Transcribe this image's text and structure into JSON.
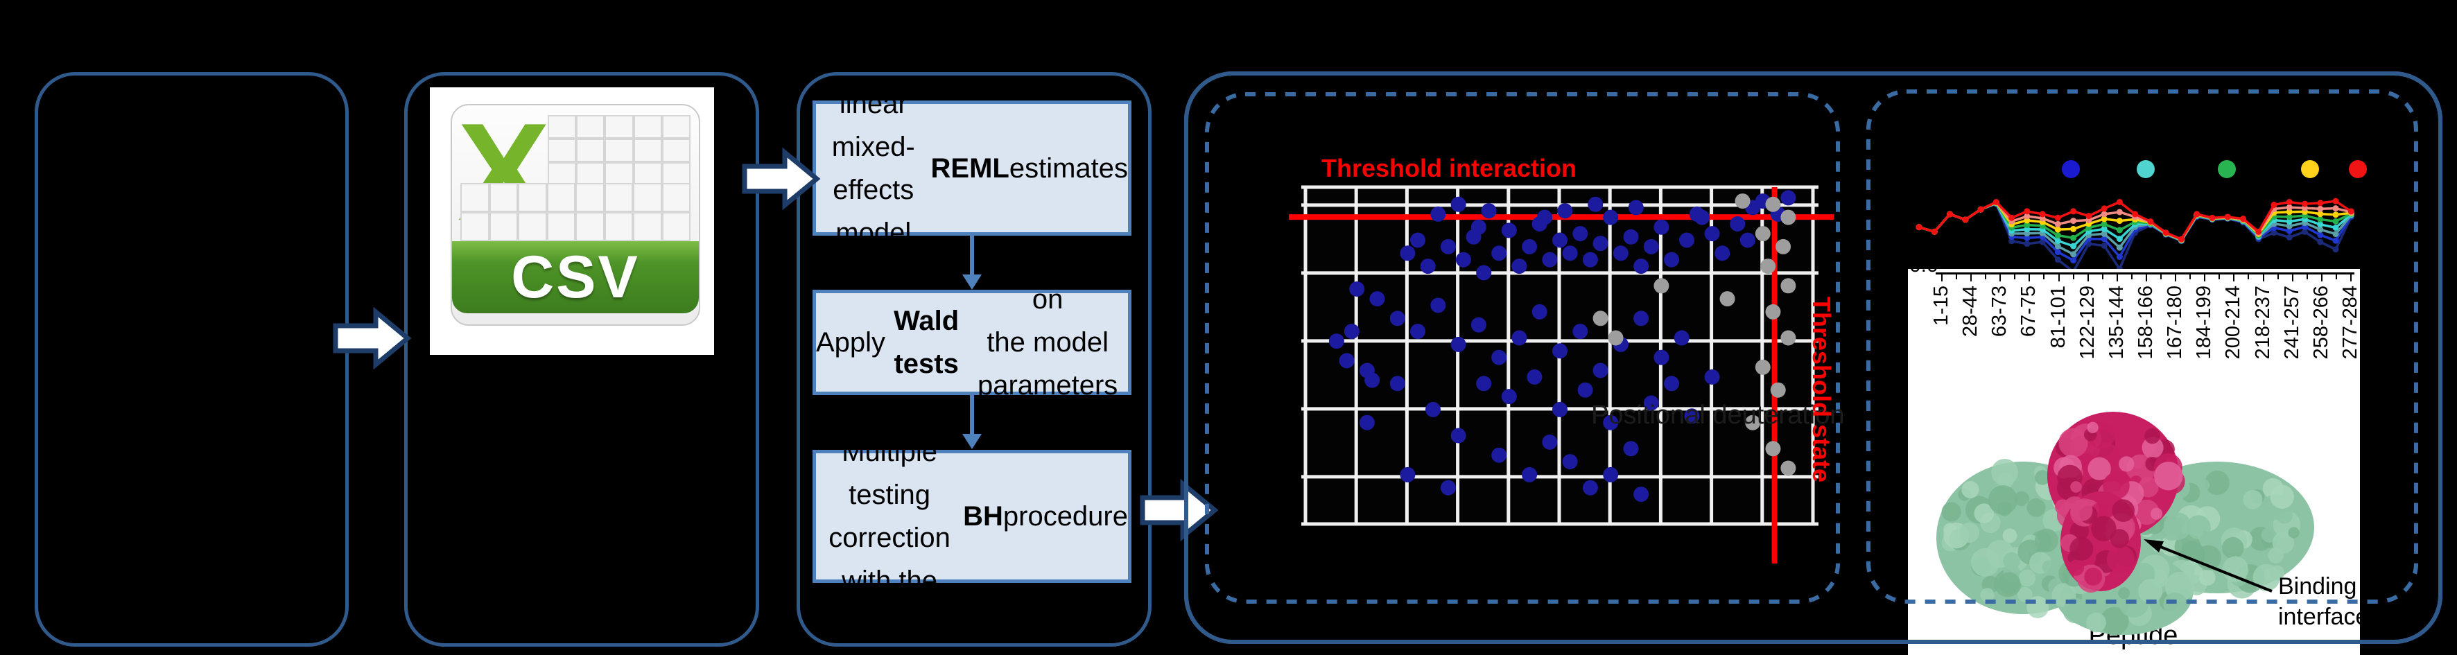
{
  "pipeline": {
    "csv_icon_label": "CSV",
    "steps": [
      {
        "pre": "Fit a linear mixed-\neffects model with\n",
        "bold": "REML",
        "post": " estimates"
      },
      {
        "pre": "Apply ",
        "bold": "Wald tests",
        "post": " on\nthe model parameters"
      },
      {
        "pre": "Multiple testing\ncorrection\nwith the ",
        "bold": "BH",
        "post": " procedure"
      }
    ]
  },
  "colors": {
    "box_border": "#315a8c",
    "step_fill": "#dbe5f1",
    "step_border": "#4f81bd",
    "dashed_border": "#3a6ba3",
    "threshold_red": "#ff0000",
    "scatter_blue": "#1c1a9e",
    "scatter_gray": "#9e9e9e",
    "protein_green": "#8cc3a4",
    "protein_magenta": "#c81e62"
  },
  "scatter_panel": {
    "title": "Threshold interaction",
    "vertical_label": "Threshold state",
    "faint_label": "Positional deuteration"
  },
  "profile_panel": {
    "ytick": "0.0",
    "xlabel": "Peptide",
    "xticklabels": [
      "1-15",
      "28-44",
      "63-73",
      "67-75",
      "81-101",
      "122-129",
      "135-144",
      "158-166",
      "167-180",
      "184-199",
      "200-214",
      "218-237",
      "241-257",
      "258-266",
      "277-284"
    ],
    "binding_label": "Binding\ninterface"
  },
  "chart_data": [
    {
      "type": "scatter",
      "title": "Threshold interaction",
      "note": "axes unlabeled; coordinates are percent of plot area (x right, y down)",
      "thresholds": {
        "horizontal_y_pct": 9.2,
        "vertical_x_pct": 91.5,
        "horizontal_label": "Threshold interaction",
        "vertical_label": "Threshold state"
      },
      "grid": {
        "v_lines": 11,
        "h_lines_y_pct": [
          0.4,
          5.7,
          25.7,
          45.7,
          65.7,
          85.7,
          99.6
        ]
      },
      "series": [
        {
          "name": "significant-peptides-blue",
          "color": "#1c1a9e",
          "points": [
            [
              26,
              7
            ],
            [
              30,
              4
            ],
            [
              34,
              11
            ],
            [
              36,
              6
            ],
            [
              47,
              8
            ],
            [
              51,
              6
            ],
            [
              57,
              4
            ],
            [
              60,
              8
            ],
            [
              65,
              5
            ],
            [
              77,
              7
            ],
            [
              88,
              5
            ],
            [
              90,
              3
            ],
            [
              93,
              7
            ],
            [
              95,
              2
            ],
            [
              6,
              46
            ],
            [
              8,
              52
            ],
            [
              9,
              43
            ],
            [
              12,
              55
            ],
            [
              13,
              58
            ],
            [
              20,
              19
            ],
            [
              22,
              15
            ],
            [
              24,
              23
            ],
            [
              28,
              17
            ],
            [
              31,
              21
            ],
            [
              33,
              14
            ],
            [
              35,
              25
            ],
            [
              38,
              19
            ],
            [
              40,
              12
            ],
            [
              42,
              23
            ],
            [
              44,
              17
            ],
            [
              46,
              10
            ],
            [
              48,
              21
            ],
            [
              50,
              15
            ],
            [
              52,
              19
            ],
            [
              54,
              13
            ],
            [
              56,
              21
            ],
            [
              58,
              16
            ],
            [
              62,
              19
            ],
            [
              64,
              14
            ],
            [
              66,
              23
            ],
            [
              68,
              17
            ],
            [
              70,
              11
            ],
            [
              72,
              21
            ],
            [
              75,
              15
            ],
            [
              78,
              8
            ],
            [
              80,
              13
            ],
            [
              82,
              19
            ],
            [
              85,
              10
            ],
            [
              87,
              15
            ],
            [
              10,
              30
            ],
            [
              14,
              33
            ],
            [
              18,
              39
            ],
            [
              22,
              43
            ],
            [
              26,
              35
            ],
            [
              30,
              47
            ],
            [
              34,
              41
            ],
            [
              38,
              51
            ],
            [
              42,
              45
            ],
            [
              46,
              37
            ],
            [
              50,
              49
            ],
            [
              54,
              43
            ],
            [
              58,
              55
            ],
            [
              62,
              47
            ],
            [
              66,
              39
            ],
            [
              70,
              51
            ],
            [
              74,
              45
            ],
            [
              35,
              59
            ],
            [
              40,
              63
            ],
            [
              45,
              57
            ],
            [
              50,
              67
            ],
            [
              55,
              61
            ],
            [
              60,
              71
            ],
            [
              48,
              77
            ],
            [
              52,
              83
            ],
            [
              44,
              87
            ],
            [
              56,
              91
            ],
            [
              38,
              81
            ],
            [
              30,
              75
            ],
            [
              25,
              67
            ],
            [
              18,
              59
            ],
            [
              12,
              71
            ],
            [
              64,
              79
            ],
            [
              68,
              65
            ],
            [
              72,
              59
            ],
            [
              76,
              69
            ],
            [
              80,
              57
            ],
            [
              20,
              87
            ],
            [
              28,
              91
            ],
            [
              60,
              87
            ],
            [
              66,
              93
            ]
          ]
        },
        {
          "name": "nonsignificant-peptides-gray",
          "color": "#9e9e9e",
          "points": [
            [
              92,
              4
            ],
            [
              95,
              8
            ],
            [
              90,
              13
            ],
            [
              94,
              17
            ],
            [
              91,
              23
            ],
            [
              95,
              29
            ],
            [
              92,
              37
            ],
            [
              95,
              45
            ],
            [
              90,
              54
            ],
            [
              93,
              61
            ],
            [
              58,
              39
            ],
            [
              61,
              45
            ],
            [
              70,
              29
            ],
            [
              83,
              33
            ],
            [
              92,
              79
            ],
            [
              95,
              85
            ],
            [
              88,
              71
            ],
            [
              86,
              3
            ]
          ]
        }
      ]
    },
    {
      "type": "line",
      "title": "",
      "xlabel": "Peptide",
      "ylabel": "",
      "ytick_visible": "0.0",
      "xticklabels": [
        "1-15",
        "28-44",
        "63-73",
        "67-75",
        "81-101",
        "122-129",
        "135-144",
        "158-166",
        "167-180",
        "184-199",
        "200-214",
        "218-237",
        "241-257",
        "258-266",
        "277-284"
      ],
      "legend_marker_colors": [
        "#1a1ad0",
        "#4fd4cf",
        "#28b450",
        "#ffd21c",
        "#f01414"
      ],
      "note": "y values are percent depth from chart top (100 = 0.0 axis line)",
      "x_pct": [
        0,
        3.5,
        7,
        10.5,
        14,
        17.5,
        21,
        24.5,
        28,
        31.5,
        35,
        38.5,
        42,
        45.5,
        49,
        52.5,
        56,
        59.5,
        63,
        66.5,
        70,
        73.5,
        77,
        80.5,
        84,
        87.5,
        91,
        94.5,
        98
      ],
      "series": [
        {
          "name": "navy",
          "color": "#1b2a7b",
          "values": [
            52,
            57,
            38,
            44,
            33,
            27,
            67,
            70,
            68,
            87,
            100,
            70,
            72,
            97,
            58,
            50,
            60,
            67,
            41,
            44,
            43,
            47,
            65,
            58,
            63,
            57,
            68,
            76,
            41
          ]
        },
        {
          "name": "blue",
          "color": "#2138cf",
          "values": [
            52,
            57,
            38,
            44,
            33,
            26.6,
            62.5,
            63.7,
            62.6,
            78.9,
            87.8,
            64.6,
            64.8,
            84,
            54.4,
            49.3,
            59.6,
            66.6,
            40.5,
            43.6,
            42.6,
            46.3,
            63.6,
            52.6,
            56.2,
            51.6,
            60.4,
            66.6,
            39.9
          ]
        },
        {
          "name": "cadet",
          "color": "#5b9ea8",
          "values": [
            52,
            57,
            38,
            44,
            33,
            26.4,
            59,
            58.8,
            58.4,
            72.6,
            81.2,
            60.4,
            59.2,
            74,
            51.6,
            48.7,
            59.4,
            66.4,
            40,
            43.4,
            42.4,
            45.7,
            62.4,
            48.4,
            50.8,
            47.4,
            54.6,
            59.4,
            39.1
          ]
        },
        {
          "name": "cyan",
          "color": "#38d3d3",
          "values": [
            52,
            57,
            38,
            44,
            33,
            26.1,
            55.8,
            54.3,
            54.5,
            66.8,
            72.4,
            56.5,
            54,
            64.6,
            49,
            48.2,
            59.1,
            66.1,
            39.7,
            43.1,
            42.1,
            45.2,
            61.4,
            44.5,
            45.9,
            43.5,
            49.1,
            52.6,
            38.3
          ]
        },
        {
          "name": "green",
          "color": "#22b14c",
          "values": [
            52,
            57,
            38,
            44,
            33,
            25.8,
            52.5,
            49.7,
            50.6,
            60.9,
            63.6,
            52.6,
            48.8,
            55.2,
            46.4,
            47.7,
            58.8,
            65.8,
            39.3,
            42.8,
            41.8,
            44.7,
            60.4,
            40.6,
            41,
            39.6,
            43.6,
            45.8,
            37.5
          ]
        },
        {
          "name": "yellow",
          "color": "#ffd400",
          "values": [
            52,
            57,
            38,
            44,
            33,
            25.6,
            49,
            44.8,
            46.4,
            54.6,
            54,
            48.4,
            43.2,
            45.2,
            43.6,
            47.1,
            58.6,
            65.6,
            38.8,
            42.6,
            41.6,
            44.1,
            59.2,
            36.4,
            35.6,
            35.4,
            37.8,
            38.6,
            36.7
          ]
        },
        {
          "name": "salmon",
          "color": "#f28b82",
          "values": [
            52,
            57,
            38,
            44,
            33,
            25.3,
            45.8,
            40.3,
            42.5,
            48.8,
            45.2,
            44.5,
            38,
            35.8,
            41,
            46.6,
            58.3,
            65.3,
            38.5,
            42.3,
            41.3,
            43.6,
            58.2,
            32.5,
            30.7,
            31.5,
            32.3,
            31.8,
            35.9
          ]
        },
        {
          "name": "red",
          "color": "#f21111",
          "values": [
            52,
            57,
            38,
            44,
            33,
            25,
            42,
            35,
            38,
            42,
            35,
            40,
            32,
            25,
            38,
            46,
            58,
            65,
            38,
            42,
            41,
            43,
            57,
            28,
            25,
            27,
            26,
            24,
            35
          ]
        }
      ]
    }
  ]
}
